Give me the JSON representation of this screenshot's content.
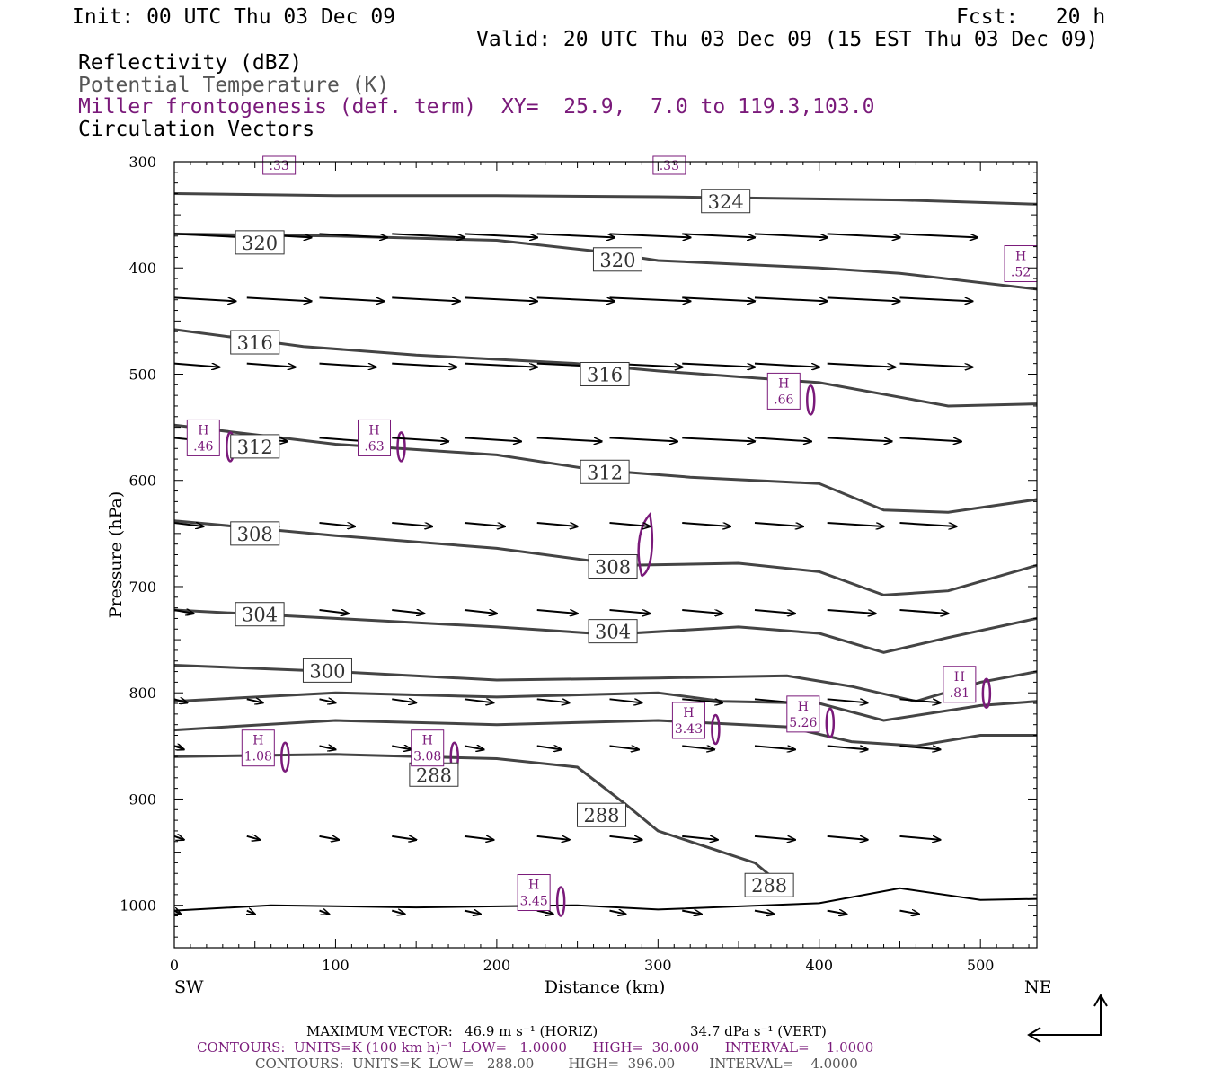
{
  "header": {
    "init": "Init: 00 UTC Thu 03 Dec 09",
    "fcst": "Fcst:   20 h",
    "valid": "Valid: 20 UTC Thu 03 Dec 09 (15 EST Thu 03 Dec 09)",
    "fields": [
      "Reflectivity (dBZ)",
      "Potential Temperature (K)",
      "Miller frontogenesis (def. term)",
      "Circulation Vectors"
    ],
    "xy": "XY=  25.9,  7.0 to 119.3,103.0"
  },
  "footer": {
    "max_vector_label": "MAXIMUM VECTOR:",
    "max_vector_horiz": "46.9 m s⁻¹ (HORIZ)",
    "max_vector_vert": "34.7 dPa s⁻¹ (VERT)",
    "contours1": "CONTOURS:  UNITS=K (100 km h)⁻¹  LOW=   1.0000      HIGH=  30.000      INTERVAL=    1.0000",
    "contours2": "CONTOURS:  UNITS=K  LOW=   288.00        HIGH=  396.00        INTERVAL=    4.0000"
  },
  "colors": {
    "theta": "#444444",
    "frontogenesis": "#7a1a7a",
    "vectors": "#000000"
  },
  "chart_data": {
    "type": "cross-section",
    "xlabel": "Distance (km)",
    "ylabel": "Pressure (hPa)",
    "xlim": [
      0,
      535
    ],
    "ylim": [
      1040,
      300
    ],
    "x_ticks": [
      "0",
      "100",
      "200",
      "300",
      "400",
      "500"
    ],
    "y_ticks": [
      "300",
      "400",
      "500",
      "600",
      "700",
      "800",
      "900",
      "1000"
    ],
    "left_endpoint": "SW",
    "right_endpoint": "NE",
    "theta_contours": [
      {
        "label": "324",
        "label_at": [
          342,
          337
        ],
        "points": [
          [
            0,
            330
          ],
          [
            100,
            332
          ],
          [
            200,
            332
          ],
          [
            300,
            333
          ],
          [
            350,
            334
          ],
          [
            450,
            336
          ],
          [
            535,
            340
          ]
        ]
      },
      {
        "label": "320",
        "label_at": [
          53,
          376
        ],
        "points": [
          [
            0,
            368
          ],
          [
            100,
            370
          ],
          [
            200,
            374
          ],
          [
            260,
            384
          ],
          [
            300,
            393
          ],
          [
            400,
            400
          ],
          [
            450,
            405
          ],
          [
            535,
            420
          ]
        ]
      },
      {
        "label": "320",
        "label_at": [
          275,
          392
        ],
        "points": []
      },
      {
        "label": "316",
        "label_at": [
          50,
          470
        ],
        "points": [
          [
            0,
            458
          ],
          [
            80,
            474
          ],
          [
            150,
            482
          ],
          [
            250,
            490
          ],
          [
            300,
            497
          ],
          [
            400,
            508
          ],
          [
            480,
            530
          ],
          [
            535,
            528
          ]
        ]
      },
      {
        "label": "316",
        "label_at": [
          267,
          500
        ],
        "points": []
      },
      {
        "label": "312",
        "label_at": [
          50,
          568
        ],
        "points": [
          [
            0,
            548
          ],
          [
            100,
            566
          ],
          [
            200,
            576
          ],
          [
            260,
            590
          ],
          [
            320,
            597
          ],
          [
            400,
            603
          ],
          [
            440,
            628
          ],
          [
            480,
            630
          ],
          [
            535,
            618
          ]
        ]
      },
      {
        "label": "312",
        "label_at": [
          267,
          592
        ],
        "points": []
      },
      {
        "label": "308",
        "label_at": [
          50,
          650
        ],
        "points": [
          [
            0,
            638
          ],
          [
            100,
            652
          ],
          [
            200,
            664
          ],
          [
            280,
            680
          ],
          [
            350,
            678
          ],
          [
            400,
            686
          ],
          [
            440,
            708
          ],
          [
            480,
            704
          ],
          [
            535,
            680
          ]
        ]
      },
      {
        "label": "308",
        "label_at": [
          272,
          681
        ],
        "points": []
      },
      {
        "label": "304",
        "label_at": [
          53,
          726
        ],
        "points": [
          [
            0,
            722
          ],
          [
            100,
            730
          ],
          [
            200,
            738
          ],
          [
            270,
            745
          ],
          [
            350,
            738
          ],
          [
            400,
            744
          ],
          [
            440,
            762
          ],
          [
            480,
            748
          ],
          [
            535,
            730
          ]
        ]
      },
      {
        "label": "304",
        "label_at": [
          272,
          742
        ],
        "points": []
      },
      {
        "label": "300",
        "label_at": [
          95,
          779
        ],
        "points": [
          [
            0,
            774
          ],
          [
            100,
            780
          ],
          [
            200,
            788
          ],
          [
            300,
            786
          ],
          [
            380,
            784
          ],
          [
            420,
            794
          ],
          [
            460,
            808
          ],
          [
            500,
            790
          ],
          [
            535,
            780
          ]
        ]
      },
      {
        "label": "",
        "label_at": null,
        "points": [
          [
            0,
            808
          ],
          [
            100,
            800
          ],
          [
            200,
            804
          ],
          [
            300,
            800
          ],
          [
            340,
            808
          ],
          [
            400,
            810
          ],
          [
            440,
            826
          ],
          [
            500,
            812
          ],
          [
            535,
            808
          ]
        ]
      },
      {
        "label": "",
        "label_at": null,
        "points": [
          [
            0,
            835
          ],
          [
            100,
            826
          ],
          [
            200,
            830
          ],
          [
            300,
            826
          ],
          [
            380,
            832
          ],
          [
            420,
            846
          ],
          [
            460,
            850
          ],
          [
            500,
            840
          ],
          [
            535,
            840
          ]
        ]
      },
      {
        "label": "288",
        "label_at": [
          161,
          877
        ],
        "points": [
          [
            0,
            860
          ],
          [
            100,
            858
          ],
          [
            200,
            862
          ],
          [
            250,
            870
          ],
          [
            280,
            905
          ],
          [
            300,
            930
          ],
          [
            330,
            945
          ],
          [
            360,
            960
          ],
          [
            380,
            985
          ]
        ]
      },
      {
        "label": "288",
        "label_at": [
          265,
          915
        ],
        "points": []
      },
      {
        "label": "288",
        "label_at": [
          369,
          981
        ],
        "points": []
      }
    ],
    "frontogenesis_maxima": [
      {
        "label": "H",
        "value": ".46",
        "x": 18,
        "p": 560
      },
      {
        "label": "H",
        "value": ".63",
        "x": 124,
        "p": 560
      },
      {
        "label": "H",
        "value": ".66",
        "x": 378,
        "p": 516
      },
      {
        "label": "H",
        "value": ".52",
        "x": 525,
        "p": 396
      },
      {
        "label": "H",
        "value": "1.08",
        "x": 52,
        "p": 852
      },
      {
        "label": "H",
        "value": "3.08",
        "x": 157,
        "p": 852
      },
      {
        "label": "H",
        "value": "3.43",
        "x": 319,
        "p": 826
      },
      {
        "label": "H",
        "value": "5.26",
        "x": 390,
        "p": 820
      },
      {
        "label": "H",
        "value": ".81",
        "x": 487,
        "p": 792
      },
      {
        "label": "H",
        "value": "3.45",
        "x": 223,
        "p": 988
      }
    ],
    "frontogenesis_cut_labels": [
      ".33",
      ".33"
    ],
    "vector_rows": [
      {
        "p": 368,
        "u": [
          45,
          40,
          42,
          45,
          45,
          48,
          50,
          45,
          45,
          45,
          48
        ]
      },
      {
        "p": 428,
        "u": [
          38,
          40,
          40,
          42,
          45,
          48,
          50,
          45,
          45,
          45,
          45
        ]
      },
      {
        "p": 490,
        "u": [
          28,
          30,
          35,
          40,
          45,
          45,
          45,
          45,
          40,
          42,
          45
        ]
      },
      {
        "p": 560,
        "u": [
          22,
          25,
          30,
          35,
          35,
          40,
          42,
          45,
          35,
          40,
          38
        ]
      },
      {
        "p": 640,
        "u": [
          18,
          20,
          22,
          25,
          25,
          25,
          25,
          30,
          30,
          35,
          35
        ]
      },
      {
        "p": 722,
        "u": [
          12,
          15,
          18,
          20,
          20,
          25,
          25,
          25,
          25,
          30,
          30
        ]
      },
      {
        "p": 806,
        "u": [
          8,
          10,
          10,
          15,
          18,
          20,
          20,
          25,
          25,
          25,
          25
        ]
      },
      {
        "p": 850,
        "u": [
          6,
          8,
          10,
          12,
          12,
          15,
          18,
          20,
          25,
          25,
          25
        ]
      },
      {
        "p": 935,
        "u": [
          6,
          8,
          12,
          15,
          18,
          20,
          20,
          22,
          25,
          25,
          25
        ]
      },
      {
        "p": 1005,
        "u": [
          4,
          5,
          6,
          8,
          10,
          10,
          10,
          12,
          12,
          12,
          12
        ]
      }
    ]
  }
}
